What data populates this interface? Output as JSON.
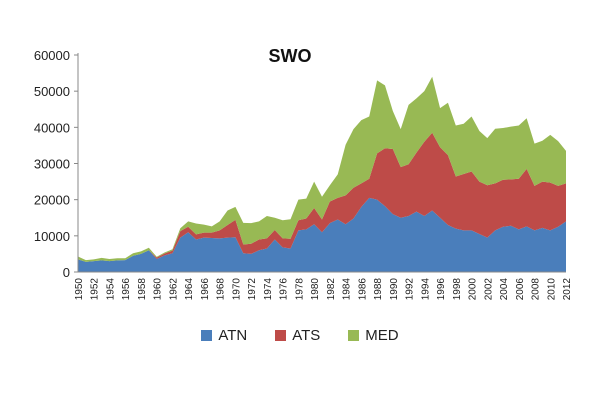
{
  "chart_data": {
    "type": "area",
    "stacked": true,
    "title": "SWO",
    "xlabel": "",
    "ylabel": "",
    "ylim": [
      0,
      60000
    ],
    "yticks": [
      "0",
      "10000",
      "20000",
      "30000",
      "40000",
      "50000",
      "60000"
    ],
    "xlim": [
      1950,
      2012
    ],
    "xticks": [
      "1950",
      "1952",
      "1954",
      "1956",
      "1958",
      "1960",
      "1962",
      "1964",
      "1966",
      "1968",
      "1970",
      "1972",
      "1974",
      "1976",
      "1978",
      "1980",
      "1982",
      "1984",
      "1986",
      "1988",
      "1990",
      "1992",
      "1994",
      "1996",
      "1998",
      "2000",
      "2002",
      "2004",
      "2006",
      "2008",
      "2010",
      "2012"
    ],
    "grid": false,
    "legend_position": "bottom",
    "x": [
      1950,
      1951,
      1952,
      1953,
      1954,
      1955,
      1956,
      1957,
      1958,
      1959,
      1960,
      1961,
      1962,
      1963,
      1964,
      1965,
      1966,
      1967,
      1968,
      1969,
      1970,
      1971,
      1972,
      1973,
      1974,
      1975,
      1976,
      1977,
      1978,
      1979,
      1980,
      1981,
      1982,
      1983,
      1984,
      1985,
      1986,
      1987,
      1988,
      1989,
      1990,
      1991,
      1992,
      1993,
      1994,
      1995,
      1996,
      1997,
      1998,
      1999,
      2000,
      2001,
      2002,
      2003,
      2004,
      2005,
      2006,
      2007,
      2008,
      2009,
      2010,
      2011,
      2012
    ],
    "series": [
      {
        "name": "ATN",
        "color": "#4a7ebb",
        "values": [
          3500,
          2800,
          3000,
          3200,
          3000,
          3200,
          3300,
          4500,
          5000,
          6000,
          3600,
          4600,
          5200,
          9500,
          11000,
          9000,
          9500,
          9400,
          9300,
          9500,
          9600,
          5200,
          5000,
          6000,
          6500,
          9000,
          6800,
          6500,
          11500,
          11800,
          13200,
          11000,
          13500,
          14500,
          13200,
          14800,
          18000,
          20500,
          20000,
          18200,
          16000,
          15000,
          15500,
          16700,
          15500,
          17000,
          15000,
          13000,
          12000,
          11500,
          11500,
          10500,
          9500,
          11500,
          12500,
          12800,
          11800,
          12600,
          11500,
          12200,
          11500,
          12500,
          14000
        ]
      },
      {
        "name": "ATS",
        "color": "#be4b48",
        "values": [
          0,
          0,
          0,
          0,
          0,
          0,
          0,
          0,
          0,
          0,
          400,
          500,
          700,
          1800,
          1500,
          1400,
          1400,
          1500,
          2200,
          3500,
          4800,
          2400,
          2800,
          3000,
          2800,
          2600,
          2500,
          2700,
          2800,
          3000,
          4500,
          3500,
          6000,
          6000,
          8000,
          8500,
          6500,
          5300,
          12800,
          16000,
          18000,
          14000,
          14300,
          16300,
          20500,
          21500,
          19500,
          19300,
          14400,
          15600,
          16300,
          14500,
          14500,
          13000,
          13000,
          12800,
          14000,
          15900,
          12300,
          12800,
          13200,
          11300,
          10500
        ]
      },
      {
        "name": "MED",
        "color": "#98b954",
        "values": [
          800,
          500,
          500,
          700,
          600,
          600,
          500,
          700,
          700,
          700,
          200,
          300,
          400,
          800,
          1500,
          3000,
          2200,
          1700,
          2500,
          4000,
          3600,
          6000,
          5700,
          5000,
          6200,
          3400,
          5000,
          5400,
          5700,
          5500,
          7300,
          6300,
          4500,
          6500,
          14000,
          16200,
          17500,
          17200,
          20200,
          17400,
          10500,
          10500,
          16400,
          15000,
          14000,
          15500,
          10800,
          14500,
          14100,
          13900,
          15200,
          14000,
          13000,
          15100,
          14300,
          14600,
          14700,
          14000,
          11700,
          11300,
          13200,
          12400,
          9000
        ]
      }
    ]
  }
}
